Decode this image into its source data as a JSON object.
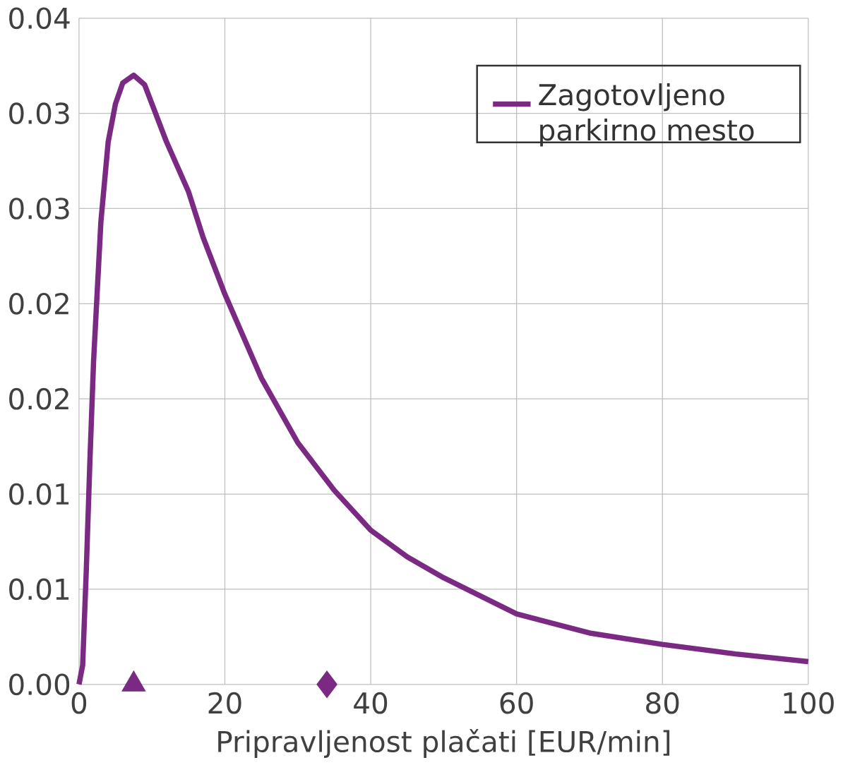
{
  "chart_data": {
    "type": "line",
    "xlabel": "Pripravljenost plačati [EUR/min]",
    "xlim": [
      0,
      100
    ],
    "xticks": [
      0,
      20,
      40,
      60,
      80,
      100
    ],
    "ylim": [
      0,
      0.035
    ],
    "yticks": [
      {
        "value": 0,
        "label": "0.00"
      },
      {
        "value": 0.005,
        "label": "0.01"
      },
      {
        "value": 0.01,
        "label": "0.01"
      },
      {
        "value": 0.015,
        "label": "0.02"
      },
      {
        "value": 0.02,
        "label": "0.02"
      },
      {
        "value": 0.025,
        "label": "0.03"
      },
      {
        "value": 0.03,
        "label": "0.03"
      },
      {
        "value": 0.035,
        "label": "0.04"
      }
    ],
    "grid": true,
    "legend": "top right",
    "line_style": "solid",
    "series": [
      {
        "name": "Zagotovljeno parkirno mesto",
        "color": "#7b2a83",
        "marker": "none",
        "x": [
          0,
          0.5,
          1,
          1.5,
          2,
          3,
          4,
          5,
          6,
          7.5,
          9,
          10,
          12,
          15,
          17,
          20,
          25,
          30,
          35,
          40,
          45,
          50,
          60,
          70,
          80,
          90,
          100
        ],
        "values": [
          0,
          0.001,
          0.006,
          0.0118,
          0.017,
          0.0243,
          0.0285,
          0.0305,
          0.0316,
          0.032,
          0.0315,
          0.0305,
          0.0285,
          0.0259,
          0.0235,
          0.0205,
          0.0161,
          0.0127,
          0.0102,
          0.0081,
          0.0067,
          0.0056,
          0.0037,
          0.0027,
          0.0021,
          0.0016,
          0.0012
        ]
      },
      {
        "color": "#7b2a83",
        "type": "scatter",
        "marker": "triangle",
        "x": [
          7.5
        ],
        "values": [
          0
        ]
      },
      {
        "color": "#7b2a83",
        "type": "scatter",
        "marker": "diamond",
        "x": [
          34
        ],
        "values": [
          0
        ]
      }
    ]
  }
}
